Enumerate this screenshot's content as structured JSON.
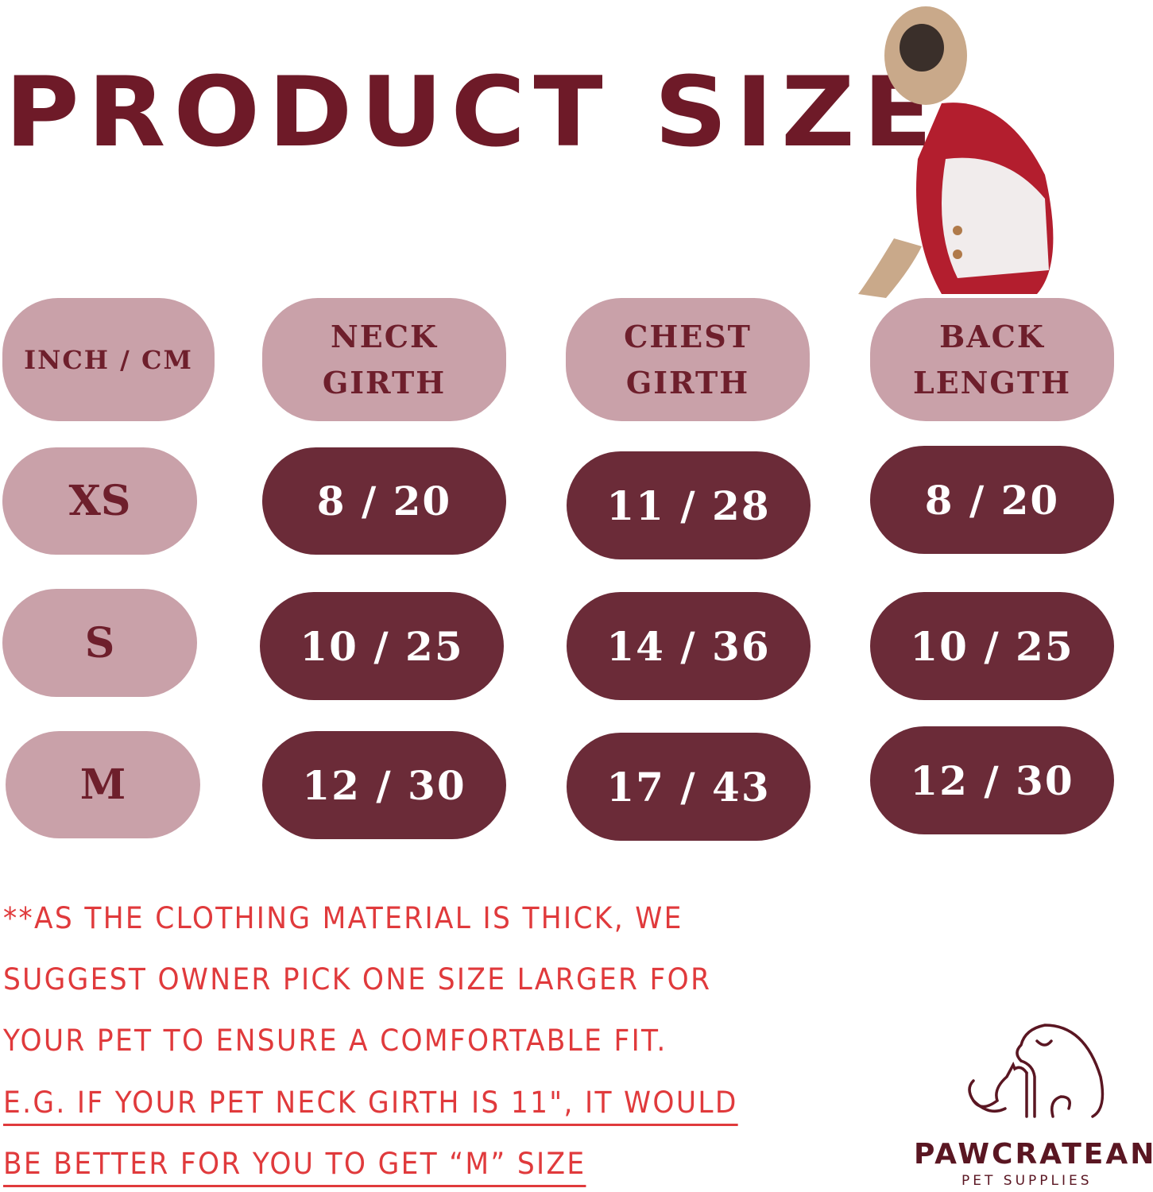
{
  "title": "PRODUCT SIZE",
  "headers": [
    "INCH / CM",
    "NECK GIRTH",
    "CHEST GIRTH",
    "BACK LENGTH"
  ],
  "rows": [
    {
      "size": "XS",
      "neck": "8 / 20",
      "chest": "11 / 28",
      "back": "8 / 20"
    },
    {
      "size": "S",
      "neck": "10 / 25",
      "chest": "14 / 36",
      "back": "10 / 25"
    },
    {
      "size": "M",
      "neck": "12 / 30",
      "chest": "17 / 43",
      "back": "12 / 30"
    }
  ],
  "notes": [
    "**AS THE CLOTHING MATERIAL IS THICK, WE",
    "SUGGEST OWNER PICK ONE SIZE LARGER FOR",
    "YOUR PET TO ENSURE A COMFORTABLE FIT.",
    "E.G. IF YOUR PET NECK GIRTH IS 11\", IT WOULD",
    "BE BETTER FOR YOU TO GET  “M” SIZE"
  ],
  "brand": {
    "name": "PAWCRATEAN",
    "tagline": "PET SUPPLIES",
    "logo": "dog-and-cat-outline-logo"
  },
  "product_image": "pug-in-red-snowflake-sweater",
  "colors": {
    "title": "#6e1a28",
    "header_pill": "#c9a1a9",
    "value_pill": "#6b2b38",
    "note_text": "#e03a3c"
  }
}
